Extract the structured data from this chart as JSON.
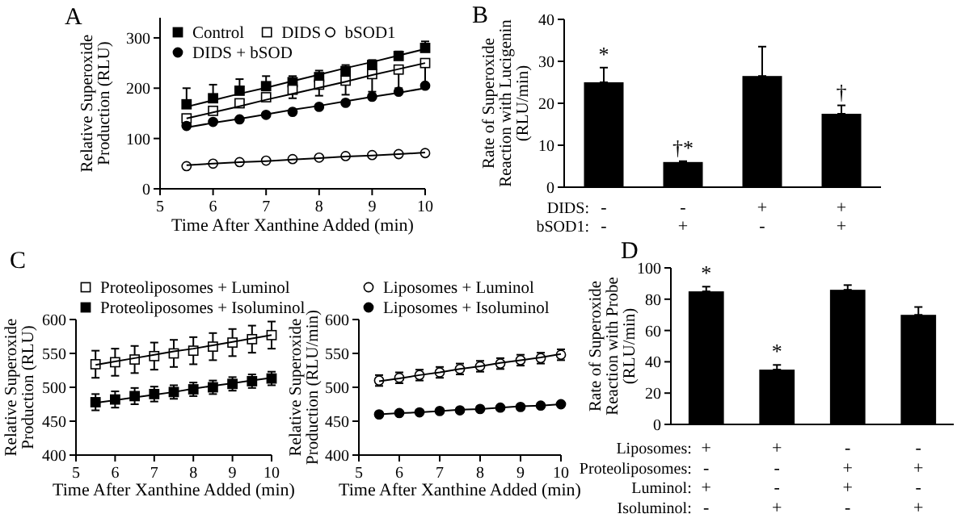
{
  "chart_data": [
    {
      "type": "scatter",
      "annotations": [
        "A"
      ],
      "xlabel": "Time After Xanthine Added (min)",
      "ylabel": "Relative Superoxide\nProduction (RLU)",
      "x": [
        5.5,
        6,
        6.5,
        7,
        7.5,
        8,
        8.5,
        9,
        9.5,
        10
      ],
      "xlim": [
        5,
        10
      ],
      "xticks": [
        5,
        6,
        7,
        8,
        9,
        10
      ],
      "ylim": [
        0,
        340
      ],
      "yticks": [
        0,
        100,
        200,
        300
      ],
      "legend": "top left",
      "series": [
        {
          "type": "scatter",
          "name": "Control",
          "color": "#000000",
          "marker": "square",
          "values": [
            168,
            180,
            195,
            204,
            212,
            222,
            234,
            246,
            264,
            280
          ],
          "errors": [
            [
              168,
              200
            ],
            [
              180,
              207
            ],
            [
              195,
              218
            ],
            [
              204,
              224
            ],
            [
              212,
              224
            ],
            [
              222,
              235
            ],
            [
              234,
              246
            ],
            [
              246,
              256
            ],
            [
              264,
              273
            ],
            [
              280,
              293
            ]
          ]
        },
        {
          "type": "scatter",
          "name": "DIDS",
          "color": "#ffffff",
          "marker": "square",
          "values": [
            140,
            155,
            170,
            182,
            197,
            207,
            215,
            228,
            237,
            250
          ],
          "errors": [
            null,
            null,
            null,
            null,
            [
              180,
              197
            ],
            [
              185,
              207
            ],
            [
              187,
              215
            ],
            [
              193,
              228
            ],
            [
              200,
              237
            ],
            [
              205,
              250
            ]
          ]
        },
        {
          "type": "scatter",
          "name": "bSOD1",
          "color": "#ffffff",
          "marker": "circle",
          "values": [
            45,
            50,
            53,
            56,
            59,
            62,
            65,
            67,
            69,
            71
          ]
        },
        {
          "type": "scatter",
          "name": "DIDS + bSOD",
          "color": "#000000",
          "marker": "circle",
          "values": [
            125,
            133,
            138,
            147,
            153,
            163,
            171,
            183,
            193,
            205
          ]
        },
        {
          "type": "line",
          "color": "#000000",
          "marker": "none",
          "values": [
            163,
            176,
            189,
            201,
            214,
            227,
            240,
            252,
            265,
            278
          ]
        },
        {
          "type": "line",
          "color": "#000000",
          "marker": "none",
          "values": [
            140,
            152,
            164,
            177,
            189,
            201,
            213,
            226,
            238,
            250
          ]
        },
        {
          "type": "line",
          "color": "#000000",
          "marker": "none",
          "values": [
            47,
            50,
            53,
            55,
            58,
            61,
            64,
            66,
            69,
            72
          ]
        },
        {
          "type": "line",
          "color": "#000000",
          "marker": "none",
          "values": [
            122,
            131,
            139,
            148,
            157,
            165,
            174,
            183,
            191,
            200
          ]
        }
      ]
    },
    {
      "type": "bar",
      "annotations": [
        "B",
        "DIDS:",
        "bSOD1:",
        {
          "text": "*",
          "x": "-\n-",
          "y": 28.5
        },
        {
          "text": "†*",
          "x": "-\n+",
          "y": 6.2
        },
        {
          "text": "†",
          "x": "+\n+",
          "y": 19.5
        }
      ],
      "ylabel": "Rate of  Superoxide\nReaction with Lucigenin\n(RLU/min)",
      "categories": [
        "-\n-",
        "-\n+",
        "+\n-",
        "+\n+"
      ],
      "values": [
        25,
        6,
        26.5,
        17.5
      ],
      "errors": [
        [
          25,
          28.5
        ],
        [
          6,
          6.2
        ],
        [
          26.5,
          33.5
        ],
        [
          17.5,
          19.5
        ]
      ],
      "color": "#000000",
      "ylim": [
        0,
        40
      ],
      "yticks": [
        0,
        10,
        20,
        30,
        40
      ]
    },
    {
      "type": "scatter",
      "annotations": [
        "C"
      ],
      "xlabel": "Time After Xanthine Added (min)",
      "ylabel": "Relative Superoxide\nProduction (RLU)",
      "x": [
        5.5,
        6,
        6.5,
        7,
        7.5,
        8,
        8.5,
        9,
        9.5,
        10
      ],
      "xlim": [
        5,
        10
      ],
      "xticks": [
        5,
        6,
        7,
        8,
        9,
        10
      ],
      "ylim": [
        400,
        600
      ],
      "yticks": [
        400,
        450,
        500,
        550,
        600
      ],
      "legend": "top",
      "series": [
        {
          "type": "scatter",
          "name": "Proteoliposomes + Luminol",
          "color": "#ffffff",
          "marker": "square",
          "values": [
            534,
            537,
            541,
            546,
            550,
            554,
            560,
            566,
            571,
            577
          ],
          "errors": [
            20,
            20,
            20,
            20,
            20,
            20,
            20,
            20,
            20,
            20
          ]
        },
        {
          "type": "scatter",
          "name": "Proteoliposomes + Isoluminol",
          "color": "#000000",
          "marker": "square",
          "values": [
            478,
            482,
            487,
            490,
            493,
            497,
            500,
            505,
            509,
            513
          ],
          "errors": [
            12,
            12,
            12,
            11,
            10,
            10,
            10,
            10,
            10,
            10
          ]
        },
        {
          "type": "line",
          "color": "#000000",
          "marker": "none",
          "values": [
            533,
            538,
            543,
            548,
            553,
            557,
            562,
            567,
            572,
            577
          ]
        },
        {
          "type": "line",
          "color": "#000000",
          "marker": "none",
          "values": [
            477,
            481,
            485,
            489,
            493,
            498,
            502,
            506,
            510,
            514
          ]
        }
      ]
    },
    {
      "type": "scatter",
      "xlabel": "Time After Xanthine Added (min)",
      "ylabel": "Relative Superoxide\nProduction (RLU/min)",
      "x": [
        5.5,
        6,
        6.5,
        7,
        7.5,
        8,
        8.5,
        9,
        9.5,
        10
      ],
      "xlim": [
        5,
        10
      ],
      "xticks": [
        5,
        6,
        7,
        8,
        9,
        10
      ],
      "ylim": [
        400,
        600
      ],
      "yticks": [
        400,
        450,
        500,
        550,
        600
      ],
      "legend": "top",
      "series": [
        {
          "type": "scatter",
          "name": "Liposomes + Luminol",
          "color": "#ffffff",
          "marker": "circle",
          "values": [
            510,
            514,
            518,
            522,
            527,
            531,
            535,
            540,
            543,
            548
          ],
          "errors": [
            8,
            8,
            8,
            8,
            8,
            8,
            8,
            8,
            8,
            8
          ]
        },
        {
          "type": "scatter",
          "name": "Liposomes + Isoluminol",
          "color": "#000000",
          "marker": "circle",
          "values": [
            460,
            462,
            463,
            465,
            466,
            468,
            470,
            471,
            473,
            475
          ]
        },
        {
          "type": "line",
          "color": "#000000",
          "marker": "none",
          "values": [
            509,
            513,
            518,
            522,
            527,
            531,
            536,
            540,
            544,
            549
          ]
        },
        {
          "type": "line",
          "color": "#000000",
          "marker": "none",
          "values": [
            460,
            462,
            463,
            465,
            467,
            468,
            470,
            472,
            473,
            475
          ]
        }
      ]
    },
    {
      "type": "bar",
      "annotations": [
        "D",
        "Liposomes:",
        "Proteoliposomes:",
        "Luminol:",
        "Isoluminol:",
        {
          "text": "*",
          "x": "+\n-\n+\n-",
          "y": 88
        },
        {
          "text": "*",
          "x": "+\n-\n-\n+",
          "y": 38
        }
      ],
      "ylabel": "Rate of  Superoxide\nReaction with Probe\n(RLU/min)",
      "categories": [
        "+\n-\n+\n-",
        "+\n-\n-\n+",
        "-\n+\n+\n-",
        "-\n+\n-\n+"
      ],
      "values": [
        85,
        35,
        86,
        70
      ],
      "errors": [
        [
          85,
          88
        ],
        [
          35,
          38
        ],
        [
          86,
          89
        ],
        [
          70,
          75
        ]
      ],
      "color": "#000000",
      "ylim": [
        0,
        100
      ],
      "yticks": [
        0,
        20,
        40,
        60,
        80,
        100
      ]
    }
  ]
}
